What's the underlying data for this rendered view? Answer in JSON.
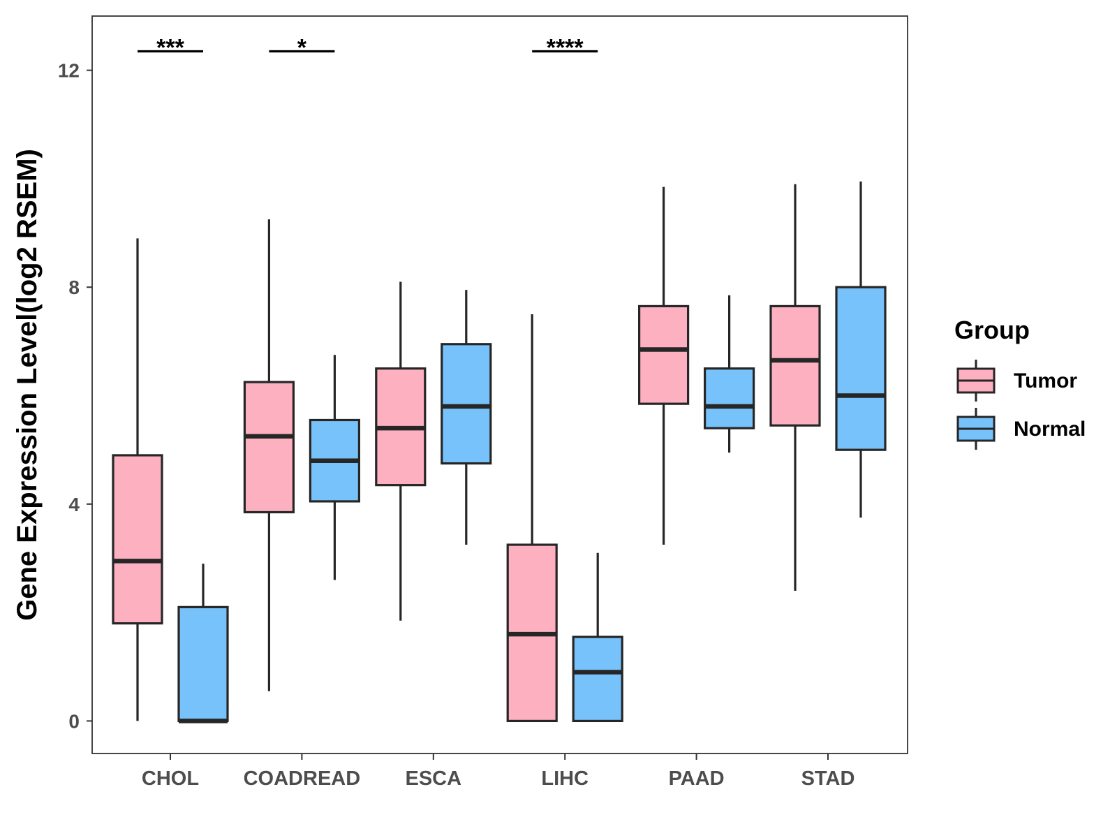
{
  "chart_data": {
    "type": "boxplot",
    "title": "",
    "xlabel": "",
    "ylabel": "Gene Expression Level(log2 RSEM)",
    "ylim": [
      -0.6,
      13.0
    ],
    "yticks": [
      0,
      4,
      8,
      12
    ],
    "ytick_labels": [
      "0",
      "4",
      "8",
      "12"
    ],
    "grid": false,
    "categories": [
      "CHOL",
      "COADREAD",
      "ESCA",
      "LIHC",
      "PAAD",
      "STAD"
    ],
    "series": [
      {
        "name": "Tumor",
        "color": "#FDB0C0",
        "boxes": [
          {
            "min": 0.0,
            "q1": 1.8,
            "median": 2.95,
            "q3": 4.9,
            "max": 8.9
          },
          {
            "min": 0.55,
            "q1": 3.85,
            "median": 5.25,
            "q3": 6.25,
            "max": 9.25
          },
          {
            "min": 1.85,
            "q1": 4.35,
            "median": 5.4,
            "q3": 6.5,
            "max": 8.1
          },
          {
            "min": 0.0,
            "q1": 0.0,
            "median": 1.6,
            "q3": 3.25,
            "max": 7.5
          },
          {
            "min": 3.25,
            "q1": 5.85,
            "median": 6.85,
            "q3": 7.65,
            "max": 9.85
          },
          {
            "min": 2.4,
            "q1": 5.45,
            "median": 6.65,
            "q3": 7.65,
            "max": 9.9
          }
        ]
      },
      {
        "name": "Normal",
        "color": "#77C2FA",
        "boxes": [
          {
            "min": 0.0,
            "q1": 0.0,
            "median": 0.0,
            "q3": 2.1,
            "max": 2.9
          },
          {
            "min": 2.6,
            "q1": 4.05,
            "median": 4.8,
            "q3": 5.55,
            "max": 6.75
          },
          {
            "min": 3.25,
            "q1": 4.75,
            "median": 5.8,
            "q3": 6.95,
            "max": 7.95
          },
          {
            "min": 0.0,
            "q1": 0.0,
            "median": 0.9,
            "q3": 1.55,
            "max": 3.1
          },
          {
            "min": 4.95,
            "q1": 5.4,
            "median": 5.8,
            "q3": 6.5,
            "max": 7.85
          },
          {
            "min": 3.75,
            "q1": 5.0,
            "median": 6.0,
            "q3": 8.0,
            "max": 9.95
          }
        ]
      }
    ],
    "significance": [
      {
        "category": "CHOL",
        "label": "***",
        "y": 12.35
      },
      {
        "category": "COADREAD",
        "label": "*",
        "y": 12.35
      },
      {
        "category": "LIHC",
        "label": "****",
        "y": 12.35
      }
    ],
    "legend": {
      "title": "Group",
      "position": "right",
      "entries": [
        "Tumor",
        "Normal"
      ]
    }
  }
}
